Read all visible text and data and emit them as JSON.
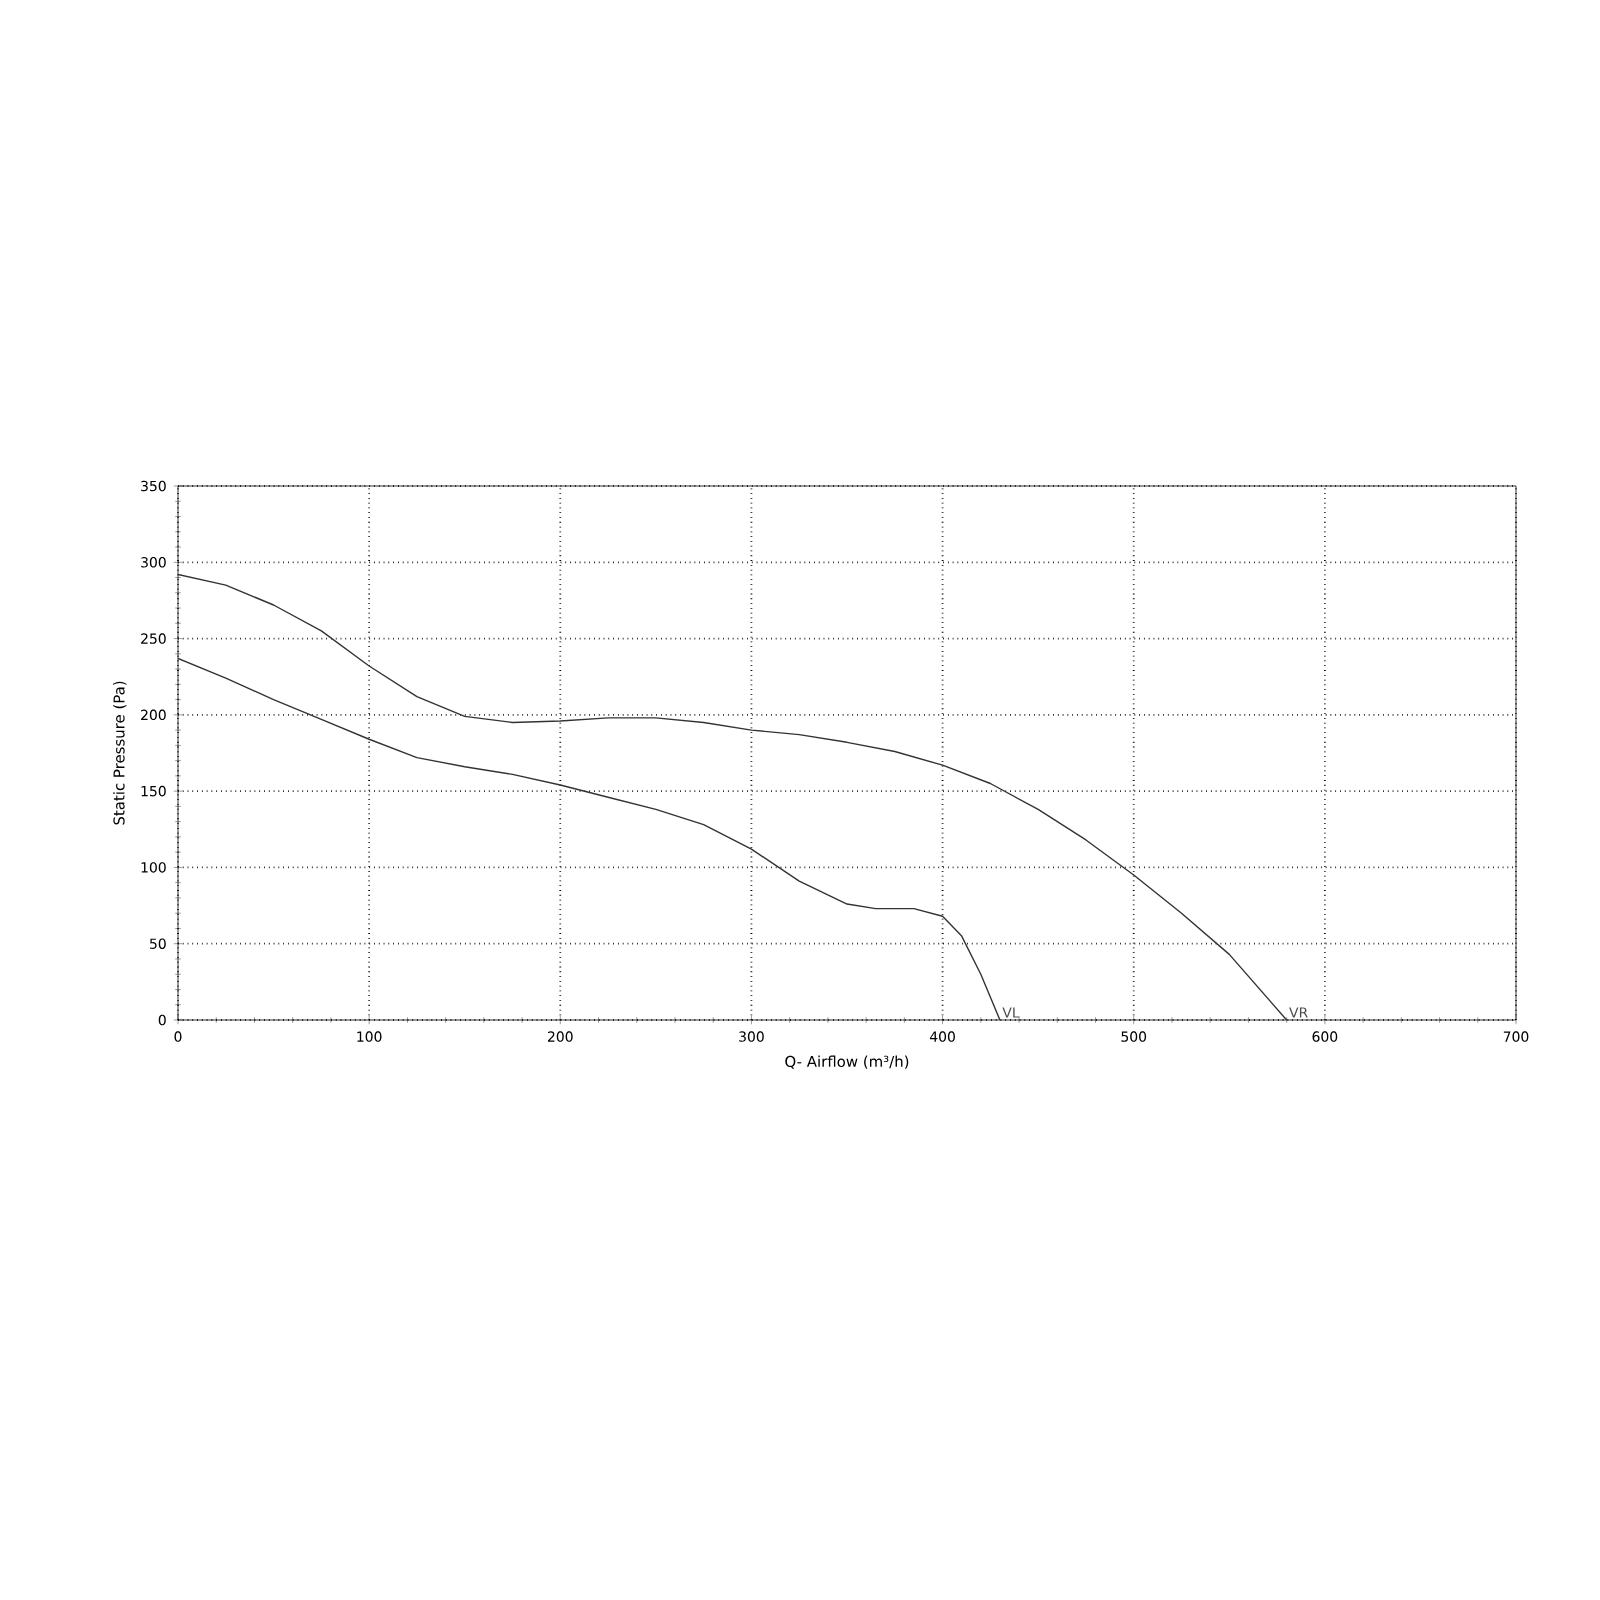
{
  "chart_data": {
    "type": "line",
    "xlabel": "Q- Airflow (m³/h)",
    "ylabel": "Static Pressure (Pa)",
    "xlim": [
      0,
      700
    ],
    "ylim": [
      0,
      350
    ],
    "xticks": [
      0,
      100,
      200,
      300,
      400,
      500,
      600,
      700
    ],
    "yticks": [
      0,
      50,
      100,
      150,
      200,
      250,
      300,
      350
    ],
    "grid": true,
    "marker": "none",
    "line_style": "solid",
    "series": [
      {
        "color": "#333333",
        "x": [
          0,
          25,
          50,
          75,
          100,
          125,
          150,
          175,
          200,
          225,
          250,
          275,
          300,
          325,
          350,
          375,
          400,
          425,
          450,
          475,
          500,
          525,
          550,
          580
        ],
        "values": [
          292,
          285,
          272,
          255,
          232,
          212,
          199,
          195,
          196,
          198,
          198,
          195,
          190,
          187,
          182,
          176,
          167,
          155,
          138,
          118,
          95,
          70,
          43,
          0
        ]
      },
      {
        "color": "#333333",
        "x": [
          0,
          25,
          50,
          75,
          100,
          125,
          150,
          175,
          200,
          225,
          250,
          275,
          300,
          325,
          350,
          365,
          385,
          400,
          410,
          420,
          430
        ],
        "values": [
          237,
          224,
          210,
          197,
          184,
          172,
          166,
          161,
          154,
          146,
          138,
          128,
          112,
          91,
          76,
          73,
          73,
          68,
          55,
          30,
          0
        ]
      }
    ],
    "annotations": [
      {
        "text": "VL",
        "x": 430,
        "y": 0
      },
      {
        "text": "VR",
        "x": 580,
        "y": 0
      }
    ]
  }
}
